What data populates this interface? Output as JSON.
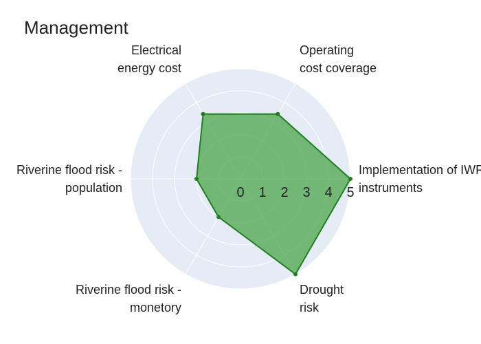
{
  "chart_data": {
    "type": "radar",
    "title": "Management",
    "axes": [
      [
        "Implementation  of IWRM",
        "instruments"
      ],
      [
        "Operating",
        "cost coverage"
      ],
      [
        "Electrical",
        "energy cost"
      ],
      [
        "Riverine flood risk -",
        "population"
      ],
      [
        "Riverine flood risk -",
        "monetory"
      ],
      [
        "Drought",
        "risk"
      ]
    ],
    "values": [
      5,
      3.4,
      3.4,
      2.0,
      2.0,
      5.0
    ],
    "radial_ticks": [
      "0",
      "1",
      "2",
      "3",
      "4",
      "5"
    ],
    "range": [
      0,
      5
    ],
    "grid": true,
    "colors": {
      "fill": "#4ca64c",
      "line": "#1f7f1f",
      "polar_bg": "#e5ecf6",
      "grid": "#ffffff"
    }
  }
}
